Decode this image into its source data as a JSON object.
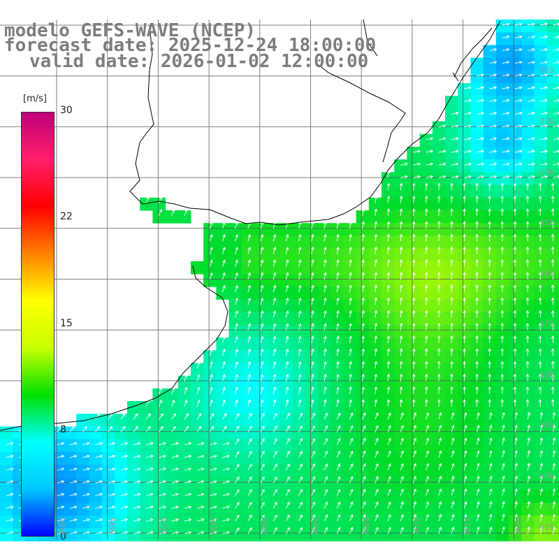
{
  "header": {
    "title": "modelo GEFS-WAVE (NCEP)",
    "forecast": "forecast date: 2025-12-24 18:00:00",
    "valid": "valid date: 2026-01-02 12:00:00"
  },
  "colorbar": {
    "unit": "[m/s]",
    "ticks": [
      "30",
      "22",
      "15",
      "8",
      "0"
    ],
    "min": 0,
    "max": 30,
    "stops": [
      "#0000ff",
      "#00c8ff",
      "#00ffff",
      "#00e000",
      "#c8ff00",
      "#ffff00",
      "#ff8000",
      "#ff0000",
      "#ff1f6a",
      "#c0007a"
    ]
  },
  "lat_labels": [
    "32S",
    "33S",
    "34S",
    "35S",
    "36S",
    "37S",
    "38S",
    "39S",
    "40S",
    "41S"
  ],
  "lon_labels": [
    "59W",
    "58W",
    "57W",
    "56W",
    "55W",
    "54W",
    "53W",
    "52W",
    "51W",
    "50W"
  ],
  "colors": {
    "coast": "#000000",
    "grid": "#555555",
    "land": "#ffffff",
    "arrow": "#ffffff"
  }
}
